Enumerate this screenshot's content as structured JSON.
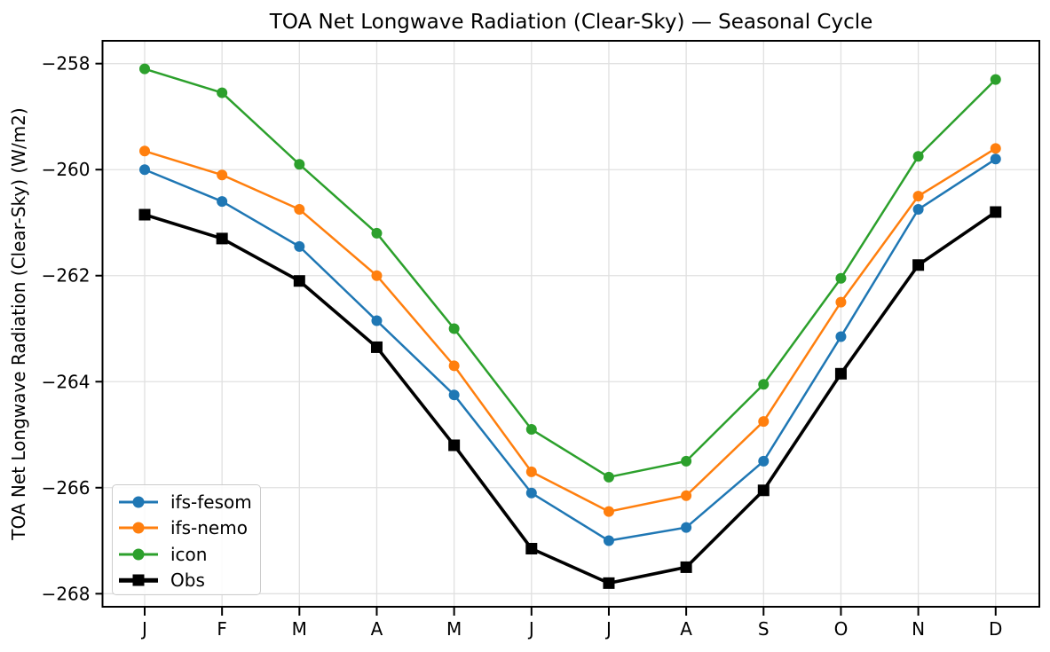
{
  "chart_data": {
    "type": "line",
    "title": "TOA Net Longwave Radiation (Clear-Sky) — Seasonal Cycle",
    "xlabel": "",
    "ylabel": "TOA Net Longwave Radiation (Clear-Sky) (W/m2)",
    "categories": [
      "J",
      "F",
      "M",
      "A",
      "M",
      "J",
      "J",
      "A",
      "S",
      "O",
      "N",
      "D"
    ],
    "yticks": [
      -258,
      -260,
      -262,
      -264,
      -266,
      -268
    ],
    "ylim": [
      -268.3,
      -257.6
    ],
    "xlim": [
      -0.55,
      11.55
    ],
    "grid": true,
    "legend_position": "lower left",
    "series": [
      {
        "name": "ifs-fesom",
        "color": "#1f77b4",
        "marker": "circle",
        "linewidth": 2.5,
        "values": [
          -260.0,
          -260.6,
          -261.45,
          -262.85,
          -264.25,
          -266.1,
          -267.0,
          -266.75,
          -265.5,
          -263.15,
          -260.75,
          -259.8
        ]
      },
      {
        "name": "ifs-nemo",
        "color": "#ff7f0e",
        "marker": "circle",
        "linewidth": 2.5,
        "values": [
          -259.65,
          -260.1,
          -260.75,
          -262.0,
          -263.7,
          -265.7,
          -266.45,
          -266.15,
          -264.75,
          -262.5,
          -260.5,
          -259.6
        ]
      },
      {
        "name": "icon",
        "color": "#2ca02c",
        "marker": "circle",
        "linewidth": 2.5,
        "values": [
          -258.1,
          -258.55,
          -259.9,
          -261.2,
          -263.0,
          -264.9,
          -265.8,
          -265.5,
          -264.05,
          -262.05,
          -259.75,
          -258.3
        ]
      },
      {
        "name": "Obs",
        "color": "#000000",
        "marker": "square",
        "linewidth": 3.6,
        "values": [
          -260.85,
          -261.3,
          -262.1,
          -263.35,
          -265.2,
          -267.15,
          -267.8,
          -267.5,
          -266.05,
          -263.85,
          -261.8,
          -260.8
        ]
      }
    ]
  }
}
